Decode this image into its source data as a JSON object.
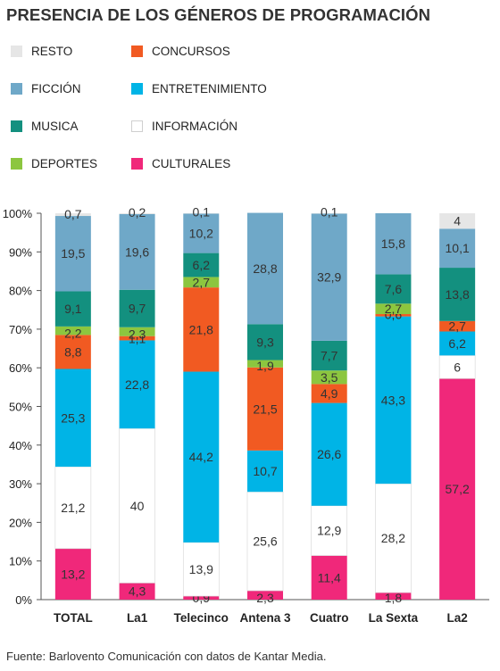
{
  "title": "PRESENCIA DE LOS GÉNEROS DE PROGRAMACIÓN",
  "source": "Fuente: Barlovento Comunicación con datos de Kantar Media.",
  "legend": [
    {
      "name": "RESTO",
      "color": "#e6e6e6"
    },
    {
      "name": "CONCURSOS",
      "color": "#f15a22"
    },
    {
      "name": "FICCIÓN",
      "color": "#6fa8c8"
    },
    {
      "name": "ENTRETENIMIENTO",
      "color": "#00b4e6"
    },
    {
      "name": "MUSICA",
      "color": "#13907f"
    },
    {
      "name": "INFORMACIÓN",
      "color": "#ffffff"
    },
    {
      "name": "DEPORTES",
      "color": "#8cc63f"
    },
    {
      "name": "CULTURALES",
      "color": "#f0287a"
    }
  ],
  "chart_data": {
    "type": "bar",
    "stacked": true,
    "categories": [
      "TOTAL",
      "La1",
      "Telecinco",
      "Antena 3",
      "Cuatro",
      "La Sexta",
      "La2"
    ],
    "ylim": [
      0,
      100
    ],
    "yticks": [
      "0%",
      "10%",
      "20%",
      "30%",
      "40%",
      "50%",
      "60%",
      "70%",
      "80%",
      "90%",
      "100%"
    ],
    "series": [
      {
        "name": "CULTURALES",
        "color": "#f0287a",
        "values": [
          13.2,
          4.3,
          0.9,
          2.3,
          11.4,
          1.8,
          57.2
        ],
        "labels": [
          "13,2",
          "4,3",
          "0,9",
          "2,3",
          "11,4",
          "1,8",
          "57,2"
        ]
      },
      {
        "name": "INFORMACIÓN",
        "color": "#ffffff",
        "values": [
          21.2,
          40,
          13.9,
          25.6,
          12.9,
          28.2,
          6
        ],
        "labels": [
          "21,2",
          "40",
          "13,9",
          "25,6",
          "12,9",
          "28,2",
          "6"
        ]
      },
      {
        "name": "ENTRETENIMIENTO",
        "color": "#00b4e6",
        "values": [
          25.3,
          22.8,
          44.2,
          10.7,
          26.6,
          43.3,
          6.2
        ],
        "labels": [
          "25,3",
          "22,8",
          "44,2",
          "10,7",
          "26,6",
          "43,3",
          "6,2"
        ]
      },
      {
        "name": "CONCURSOS",
        "color": "#f15a22",
        "values": [
          8.8,
          1.1,
          21.8,
          21.5,
          4.9,
          0.6,
          2.7
        ],
        "labels": [
          "8,8",
          "1,1",
          "21,8",
          "21,5",
          "4,9",
          "0,6",
          "2,7"
        ]
      },
      {
        "name": "DEPORTES",
        "color": "#8cc63f",
        "values": [
          2.2,
          2.3,
          2.7,
          1.9,
          3.5,
          2.7,
          0
        ],
        "labels": [
          "2,2",
          "2,3",
          "2,7",
          "1,9",
          "3,5",
          "2,7",
          ""
        ]
      },
      {
        "name": "MUSICA",
        "color": "#13907f",
        "values": [
          9.1,
          9.7,
          6.2,
          9.3,
          7.7,
          7.6,
          13.8
        ],
        "labels": [
          "9,1",
          "9,7",
          "6,2",
          "9,3",
          "7,7",
          "7,6",
          "13,8"
        ]
      },
      {
        "name": "FICCIÓN",
        "color": "#6fa8c8",
        "values": [
          19.5,
          19.6,
          10.2,
          28.8,
          32.9,
          15.8,
          10.1
        ],
        "labels": [
          "19,5",
          "19,6",
          "10,2",
          "28,8",
          "32,9",
          "15,8",
          "10,1"
        ]
      },
      {
        "name": "RESTO",
        "color": "#e6e6e6",
        "values": [
          0.7,
          0.2,
          0.1,
          0,
          0.1,
          0,
          4
        ],
        "labels": [
          "0,7",
          "0,2",
          "0,1",
          "",
          "0,1",
          "",
          "4"
        ]
      }
    ]
  }
}
